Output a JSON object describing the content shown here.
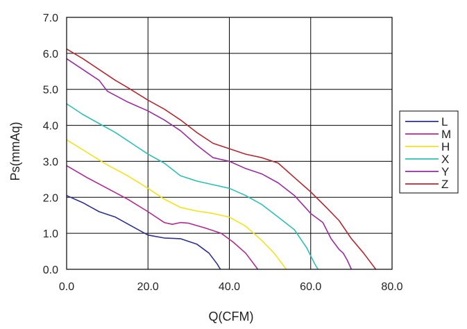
{
  "chart_data": {
    "type": "line",
    "title": "",
    "xlabel": "Q(CFM)",
    "ylabel": "Ps(mmAq)",
    "xlim": [
      0,
      80
    ],
    "ylim": [
      0,
      7
    ],
    "x_ticks": [
      "0.0",
      "20.0",
      "40.0",
      "60.0",
      "80.0"
    ],
    "y_ticks": [
      "0.0",
      "1.0",
      "2.0",
      "3.0",
      "4.0",
      "5.0",
      "6.0",
      "7.0"
    ],
    "grid": true,
    "legend_position": "right",
    "series": [
      {
        "name": "L",
        "color": "#2b2f8f",
        "points": [
          [
            0,
            2.05
          ],
          [
            4,
            1.85
          ],
          [
            8,
            1.6
          ],
          [
            12,
            1.45
          ],
          [
            16,
            1.2
          ],
          [
            20,
            0.95
          ],
          [
            24,
            0.87
          ],
          [
            28,
            0.85
          ],
          [
            32,
            0.7
          ],
          [
            35,
            0.45
          ],
          [
            37,
            0.15
          ],
          [
            37.8,
            0.0
          ]
        ]
      },
      {
        "name": "M",
        "color": "#b0288f",
        "points": [
          [
            0,
            2.88
          ],
          [
            5,
            2.55
          ],
          [
            10,
            2.25
          ],
          [
            15,
            1.95
          ],
          [
            20,
            1.6
          ],
          [
            24,
            1.3
          ],
          [
            26,
            1.25
          ],
          [
            28,
            1.3
          ],
          [
            30,
            1.28
          ],
          [
            34,
            1.15
          ],
          [
            38,
            1.0
          ],
          [
            41,
            0.75
          ],
          [
            44,
            0.45
          ],
          [
            46,
            0.15
          ],
          [
            47,
            0.0
          ]
        ]
      },
      {
        "name": "H",
        "color": "#f2e21a",
        "points": [
          [
            0,
            3.6
          ],
          [
            5,
            3.25
          ],
          [
            10,
            2.9
          ],
          [
            15,
            2.6
          ],
          [
            20,
            2.25
          ],
          [
            24,
            1.95
          ],
          [
            28,
            1.72
          ],
          [
            32,
            1.62
          ],
          [
            36,
            1.55
          ],
          [
            40,
            1.45
          ],
          [
            44,
            1.2
          ],
          [
            48,
            0.8
          ],
          [
            51,
            0.45
          ],
          [
            53,
            0.15
          ],
          [
            54,
            0.0
          ]
        ]
      },
      {
        "name": "X",
        "color": "#2bbfb3",
        "points": [
          [
            0,
            4.6
          ],
          [
            4,
            4.3
          ],
          [
            8,
            4.05
          ],
          [
            12,
            3.8
          ],
          [
            16,
            3.5
          ],
          [
            20,
            3.2
          ],
          [
            24,
            2.95
          ],
          [
            28,
            2.6
          ],
          [
            32,
            2.45
          ],
          [
            36,
            2.35
          ],
          [
            40,
            2.25
          ],
          [
            44,
            2.05
          ],
          [
            48,
            1.8
          ],
          [
            52,
            1.45
          ],
          [
            56,
            1.1
          ],
          [
            59,
            0.6
          ],
          [
            61,
            0.15
          ],
          [
            61.8,
            0.0
          ]
        ]
      },
      {
        "name": "Y",
        "color": "#9a2a9f",
        "points": [
          [
            0,
            5.85
          ],
          [
            4,
            5.55
          ],
          [
            8,
            5.25
          ],
          [
            10,
            4.95
          ],
          [
            15,
            4.65
          ],
          [
            20,
            4.4
          ],
          [
            24,
            4.15
          ],
          [
            28,
            3.85
          ],
          [
            32,
            3.45
          ],
          [
            36,
            3.1
          ],
          [
            40,
            3.0
          ],
          [
            44,
            2.8
          ],
          [
            48,
            2.65
          ],
          [
            52,
            2.4
          ],
          [
            56,
            2.05
          ],
          [
            60,
            1.55
          ],
          [
            63,
            1.3
          ],
          [
            65,
            0.85
          ],
          [
            67,
            0.55
          ],
          [
            68,
            0.45
          ],
          [
            69,
            0.25
          ],
          [
            70,
            0.0
          ]
        ]
      },
      {
        "name": "Z",
        "color": "#b5262e",
        "points": [
          [
            0,
            6.12
          ],
          [
            4,
            5.85
          ],
          [
            8,
            5.55
          ],
          [
            12,
            5.25
          ],
          [
            15,
            5.05
          ],
          [
            20,
            4.7
          ],
          [
            24,
            4.45
          ],
          [
            28,
            4.15
          ],
          [
            32,
            3.8
          ],
          [
            36,
            3.5
          ],
          [
            40,
            3.35
          ],
          [
            44,
            3.2
          ],
          [
            48,
            3.1
          ],
          [
            52,
            2.95
          ],
          [
            56,
            2.55
          ],
          [
            60,
            2.15
          ],
          [
            64,
            1.7
          ],
          [
            67,
            1.35
          ],
          [
            70,
            0.85
          ],
          [
            73,
            0.45
          ],
          [
            75,
            0.15
          ],
          [
            76,
            0.0
          ]
        ]
      }
    ]
  }
}
